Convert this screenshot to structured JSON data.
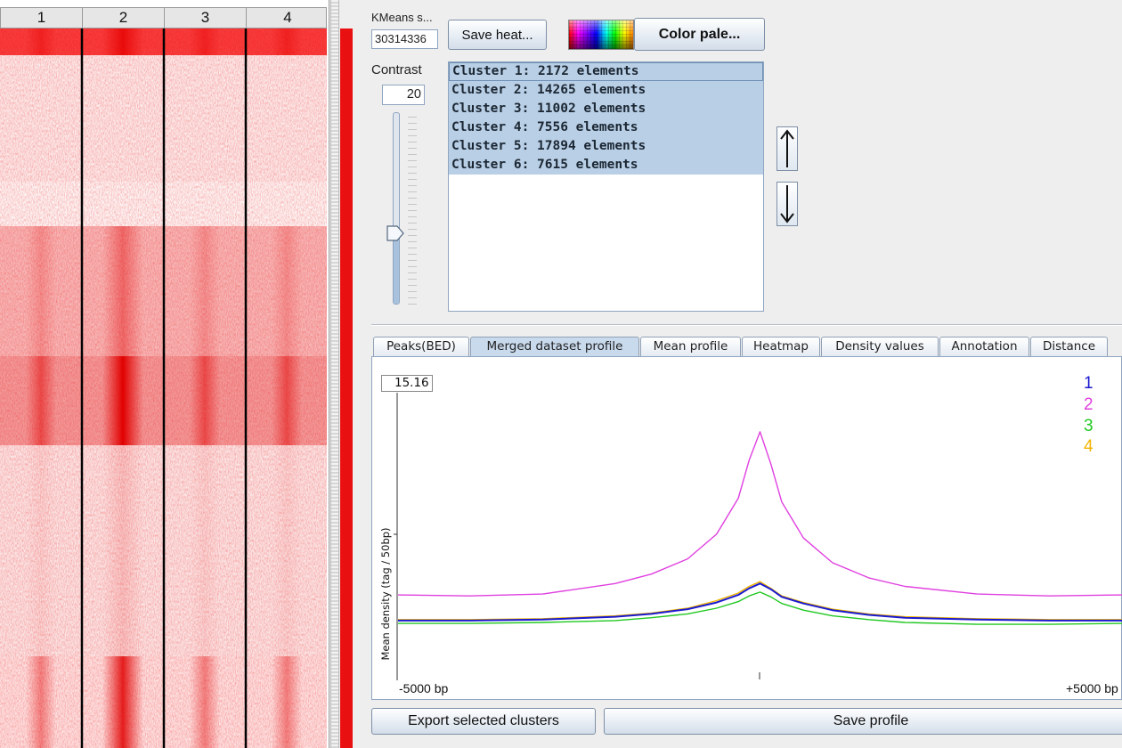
{
  "heatmap": {
    "columns": [
      "1",
      "2",
      "3",
      "4"
    ],
    "cluster_color": "#e81010"
  },
  "controls": {
    "kmeans_label": "KMeans s...",
    "seed_value": "30314336",
    "save_heatmap_label": "Save heat...",
    "color_palette_label": "Color pale...",
    "contrast_label": "Contrast",
    "contrast_value": "20",
    "contrast_level": 0.37
  },
  "clusters": [
    {
      "label": "Cluster 1: 2172 elements"
    },
    {
      "label": "Cluster 2: 14265 elements"
    },
    {
      "label": "Cluster 3: 11002 elements"
    },
    {
      "label": "Cluster 4: 7556 elements"
    },
    {
      "label": "Cluster 5: 17894 elements"
    },
    {
      "label": "Cluster 6: 7615 elements"
    }
  ],
  "tabs": [
    {
      "label": "Peaks(BED)",
      "active": false
    },
    {
      "label": "Merged dataset profile",
      "active": true
    },
    {
      "label": "Mean profile",
      "active": false
    },
    {
      "label": "Heatmap",
      "active": false
    },
    {
      "label": "Density values",
      "active": false
    },
    {
      "label": "Annotation",
      "active": false
    },
    {
      "label": "Distance",
      "active": false
    }
  ],
  "profile": {
    "ymax": "15.16",
    "ylabel": "Mean density (tag / 50bp)",
    "xmin_label": "-5000 bp",
    "xmax_label": "+5000 bp"
  },
  "chart_data": {
    "type": "line",
    "xlabel": "",
    "ylabel": "Mean density (tag / 50bp)",
    "xlim": [
      -5000,
      5000
    ],
    "ylim": [
      0,
      15.16
    ],
    "x": [
      -5000,
      -4000,
      -3000,
      -2000,
      -1500,
      -1000,
      -600,
      -300,
      -150,
      0,
      150,
      300,
      600,
      1000,
      1500,
      2000,
      3000,
      4000,
      5000
    ],
    "legend_position": "top-right",
    "series": [
      {
        "name": "1",
        "color": "#1a1ad0",
        "values": [
          3.15,
          3.15,
          3.2,
          3.35,
          3.5,
          3.75,
          4.1,
          4.5,
          4.85,
          5.1,
          4.8,
          4.4,
          4.05,
          3.7,
          3.45,
          3.3,
          3.2,
          3.15,
          3.15
        ]
      },
      {
        "name": "2",
        "color": "#e040e0",
        "values": [
          4.5,
          4.45,
          4.55,
          5.1,
          5.6,
          6.4,
          7.7,
          9.6,
          11.6,
          13.1,
          11.4,
          9.4,
          7.5,
          6.2,
          5.4,
          4.95,
          4.55,
          4.45,
          4.5
        ]
      },
      {
        "name": "3",
        "color": "#20c820",
        "values": [
          3.0,
          3.0,
          3.05,
          3.15,
          3.3,
          3.5,
          3.8,
          4.15,
          4.45,
          4.65,
          4.4,
          4.05,
          3.7,
          3.4,
          3.2,
          3.05,
          2.95,
          2.95,
          3.0
        ]
      },
      {
        "name": "4",
        "color": "#f0b400",
        "values": [
          3.2,
          3.2,
          3.25,
          3.4,
          3.55,
          3.8,
          4.2,
          4.6,
          4.95,
          5.2,
          4.85,
          4.45,
          4.1,
          3.75,
          3.5,
          3.35,
          3.25,
          3.2,
          3.2
        ]
      }
    ]
  },
  "buttons": {
    "export_label": "Export selected clusters",
    "save_profile_label": "Save profile"
  }
}
